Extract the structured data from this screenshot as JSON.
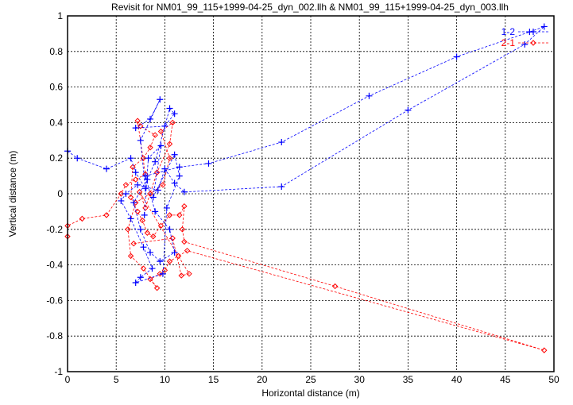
{
  "chart_data": {
    "type": "line",
    "title": "Revisit for NM01_99_115+1999-04-25_dyn_002.llh & NM01_99_115+1999-04-25_dyn_003.llh",
    "xlabel": "Horizontal distance (m)",
    "ylabel": "Vertical distance (m)",
    "xlim": [
      0,
      50
    ],
    "ylim": [
      -1,
      1
    ],
    "xticks": [
      "0",
      "5",
      "10",
      "15",
      "20",
      "25",
      "30",
      "35",
      "40",
      "45",
      "50"
    ],
    "yticks": [
      "-1",
      "-0.8",
      "-0.6",
      "-0.4",
      "-0.2",
      "0",
      "0.2",
      "0.4",
      "0.6",
      "0.8",
      "1"
    ],
    "grid": true,
    "legend_position": "top-right",
    "series": [
      {
        "name": "1-2",
        "color": "#0000ff",
        "marker": "plus",
        "points": [
          [
            0,
            0.24
          ],
          [
            1,
            0.2
          ],
          [
            4,
            0.14
          ],
          [
            6.5,
            0.2
          ],
          [
            7,
            0.12
          ],
          [
            8,
            0.03
          ],
          [
            7.5,
            0.3
          ],
          [
            9.5,
            0.53
          ],
          [
            8.5,
            0.42
          ],
          [
            7,
            0.37
          ],
          [
            10,
            0.38
          ],
          [
            11,
            0.45
          ],
          [
            10.5,
            0.48
          ],
          [
            9,
            0.18
          ],
          [
            8.2,
            0.08
          ],
          [
            6.8,
            -0.05
          ],
          [
            7.5,
            -0.2
          ],
          [
            8.5,
            -0.33
          ],
          [
            9.5,
            -0.38
          ],
          [
            11,
            -0.33
          ],
          [
            10.5,
            -0.2
          ],
          [
            9,
            -0.1
          ],
          [
            8,
            0.1
          ],
          [
            11.5,
            0.15
          ],
          [
            14.5,
            0.17
          ],
          [
            22,
            0.29
          ],
          [
            31,
            0.55
          ],
          [
            40,
            0.77
          ],
          [
            47.5,
            0.91
          ],
          [
            49,
            0.94
          ],
          [
            47,
            0.84
          ],
          [
            35,
            0.47
          ],
          [
            22,
            0.04
          ],
          [
            12,
            0.01
          ],
          [
            11,
            0.06
          ],
          [
            10,
            0.14
          ],
          [
            9.3,
            0.02
          ],
          [
            7.2,
            0.05
          ],
          [
            6,
            0.0
          ],
          [
            5.5,
            -0.04
          ],
          [
            6.5,
            -0.14
          ],
          [
            7.8,
            -0.3
          ],
          [
            8.7,
            -0.42
          ],
          [
            7.5,
            -0.47
          ],
          [
            7,
            -0.5
          ],
          [
            9.8,
            -0.45
          ],
          [
            10.2,
            -0.08
          ],
          [
            11.5,
            0.1
          ],
          [
            11,
            0.22
          ],
          [
            8.8,
            -0.02
          ],
          [
            9.6,
            0.27
          ],
          [
            8.3,
            0.2
          ],
          [
            7.9,
            -0.12
          ]
        ]
      },
      {
        "name": "2-1",
        "color": "#ff0000",
        "marker": "diamond",
        "points": [
          [
            0,
            -0.24
          ],
          [
            0,
            -0.18
          ],
          [
            1.5,
            -0.14
          ],
          [
            4,
            -0.12
          ],
          [
            5.5,
            0.0
          ],
          [
            6,
            0.05
          ],
          [
            7,
            0.08
          ],
          [
            8,
            0.11
          ],
          [
            7.2,
            0.41
          ],
          [
            7.5,
            0.38
          ],
          [
            9,
            0.33
          ],
          [
            8.5,
            0.26
          ],
          [
            7.8,
            0.2
          ],
          [
            6.7,
            0.15
          ],
          [
            6.5,
            -0.02
          ],
          [
            7.2,
            -0.1
          ],
          [
            7.7,
            -0.15
          ],
          [
            8.2,
            -0.22
          ],
          [
            8.8,
            -0.24
          ],
          [
            9.6,
            -0.18
          ],
          [
            10.5,
            -0.12
          ],
          [
            11.5,
            -0.12
          ],
          [
            12,
            -0.07
          ],
          [
            11.8,
            -0.2
          ],
          [
            12,
            -0.27
          ],
          [
            27.5,
            -0.52
          ],
          [
            49,
            -0.88
          ],
          [
            12.3,
            -0.32
          ],
          [
            11.4,
            -0.35
          ],
          [
            10.5,
            -0.38
          ],
          [
            10,
            -0.43
          ],
          [
            9.5,
            -0.45
          ],
          [
            8.5,
            -0.48
          ],
          [
            9.2,
            -0.53
          ],
          [
            7.8,
            -0.42
          ],
          [
            6.5,
            -0.35
          ],
          [
            6.2,
            -0.2
          ],
          [
            7,
            -0.05
          ],
          [
            8.5,
            0.0
          ],
          [
            9.8,
            0.05
          ],
          [
            10.5,
            0.2
          ],
          [
            9.6,
            0.35
          ],
          [
            10.8,
            0.4
          ],
          [
            10.5,
            0.28
          ],
          [
            9.2,
            0.12
          ],
          [
            8,
            -0.08
          ],
          [
            7.4,
            0.01
          ],
          [
            12.5,
            -0.45
          ],
          [
            11.7,
            -0.46
          ],
          [
            10.8,
            -0.25
          ],
          [
            6.8,
            -0.28
          ]
        ]
      }
    ]
  }
}
